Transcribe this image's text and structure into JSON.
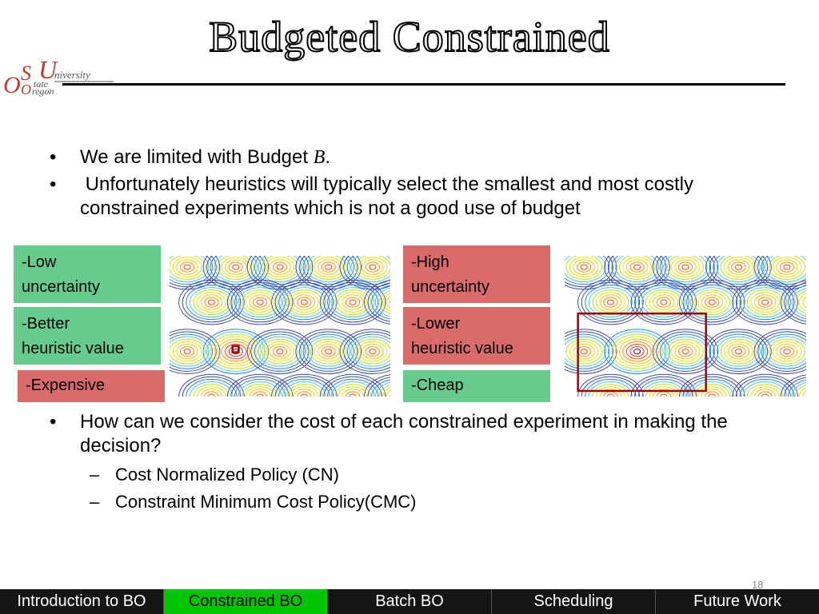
{
  "slide": {
    "title": "Budgeted Constrained",
    "page_number": "18"
  },
  "logo": {
    "o1": "O",
    "s": "S",
    "u": "U",
    "university": "niversity",
    "state": "tate",
    "o2": "O",
    "regon": "regon"
  },
  "bullets": [
    {
      "prefix": "We are limited with Budget ",
      "emph": "B",
      "suffix": "."
    },
    {
      "text": " Unfortunately heuristics will typically select the smallest and most costly constrained experiments which is not a good use of budget"
    }
  ],
  "left_labels": {
    "uncertainty": [
      "-Low",
      "uncertainty"
    ],
    "heuristic": [
      "-Better",
      "heuristic value"
    ],
    "cost": "-Expensive"
  },
  "right_labels": {
    "uncertainty": [
      "-High",
      "uncertainty"
    ],
    "heuristic": [
      "-Lower",
      "heuristic value"
    ],
    "cost": "-Cheap"
  },
  "bullet_bottom": "How can we consider the cost of each constrained experiment in making the decision?",
  "sub_bullets": [
    "Cost Normalized Policy (CN)",
    "Constraint Minimum Cost Policy(CMC)"
  ],
  "nav_tabs": [
    "Introduction to BO",
    "Constrained BO",
    "Batch BO",
    "Scheduling",
    "Future Work"
  ],
  "active_tab": 1,
  "colors": {
    "green_box": "#66cc8e",
    "red_box": "#d96b6b",
    "nav_active": "#00c400",
    "nav_bg": "#151515"
  }
}
